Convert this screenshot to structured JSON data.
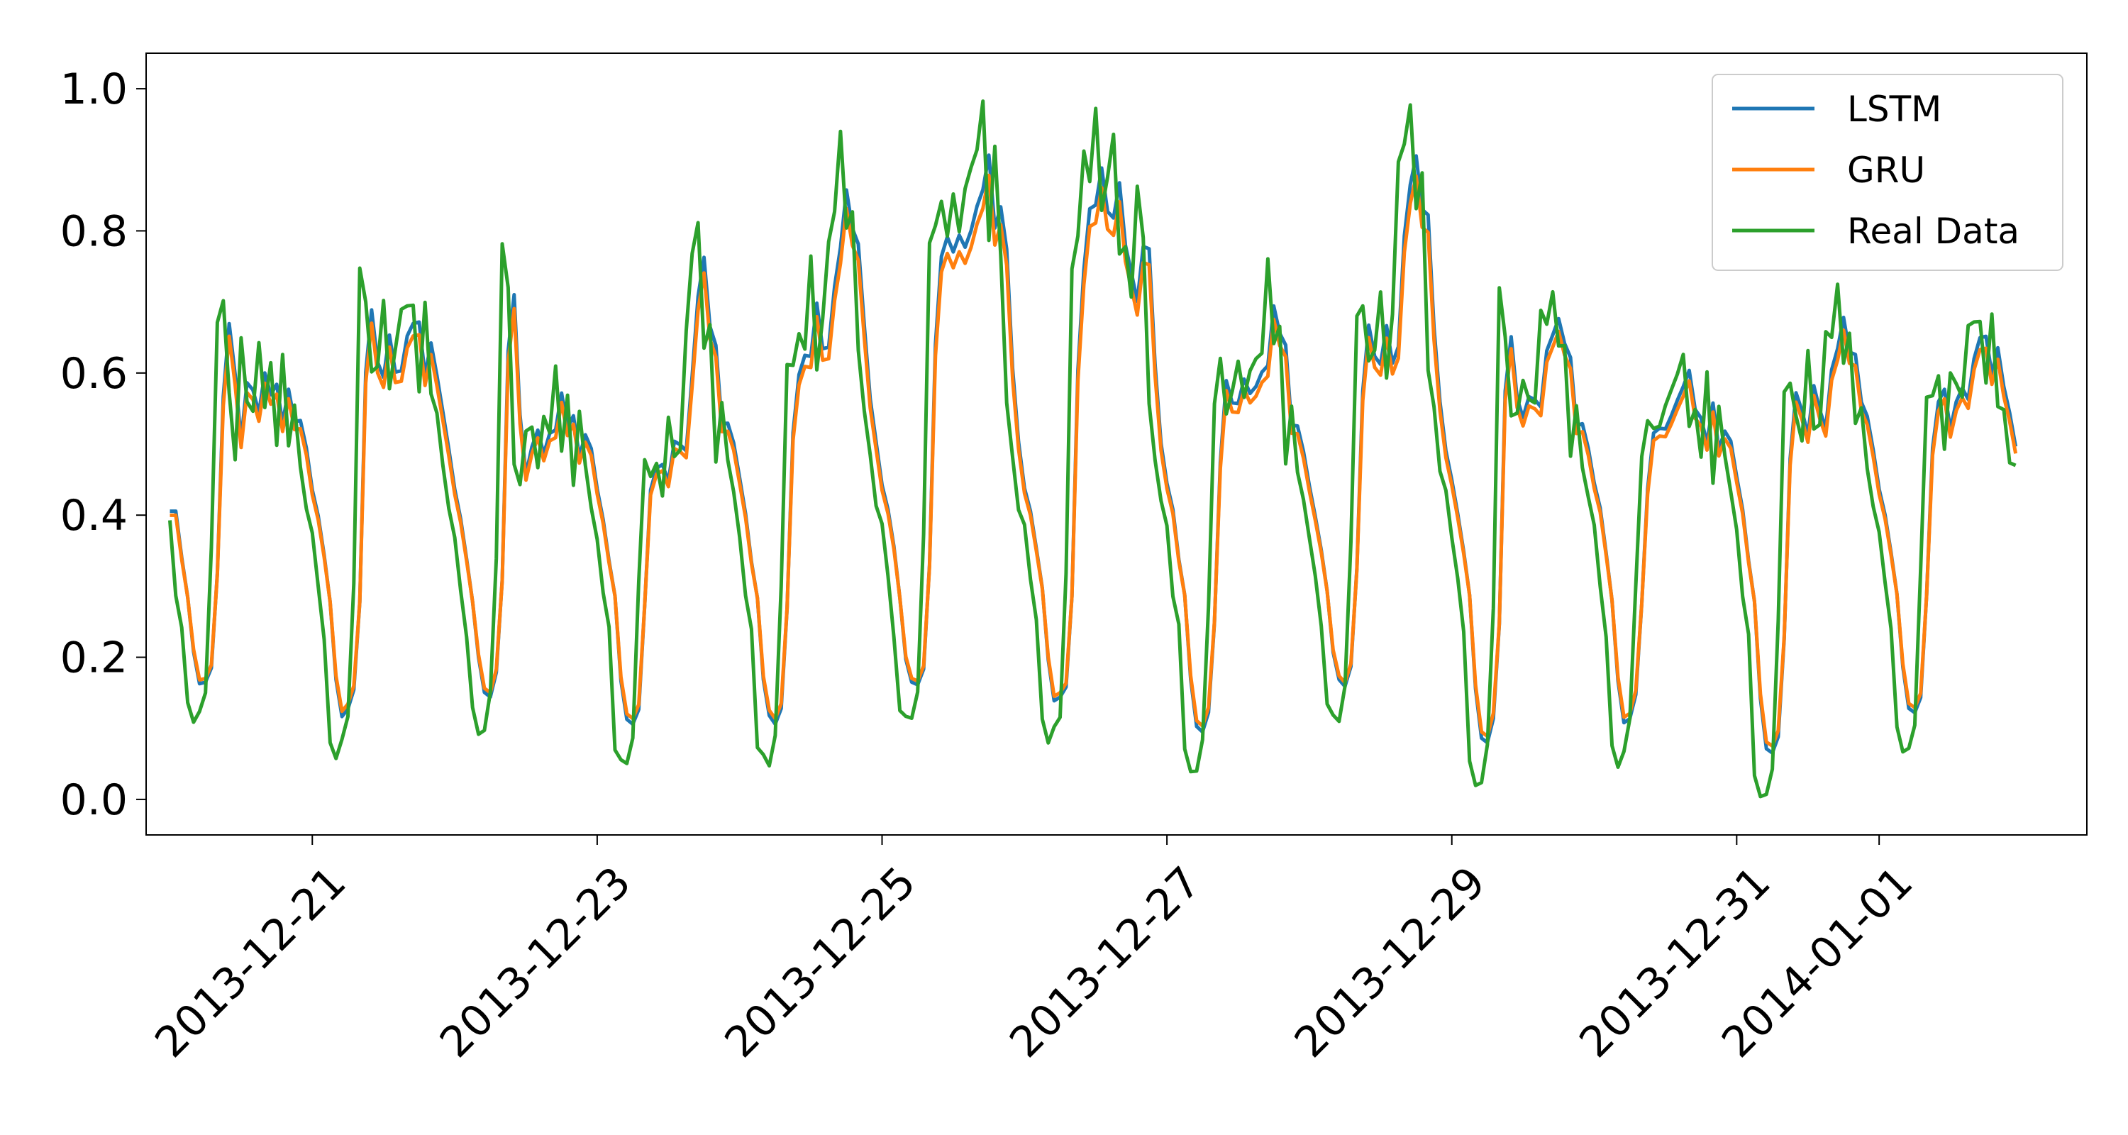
{
  "chart_data": {
    "type": "line",
    "title": "",
    "xlabel": "",
    "ylabel": "",
    "x_start": "2013-12-20 00:00",
    "x_end": "2014-01-01 23:00",
    "xlim": [
      "2013-12-19 20:00",
      "2014-01-02 11:00"
    ],
    "ylim": [
      -0.05,
      1.05
    ],
    "grid": false,
    "legend_position": "top-right",
    "x_ticks": [
      {
        "date": "2013-12-21",
        "label": "2013-12-21"
      },
      {
        "date": "2013-12-23",
        "label": "2013-12-23"
      },
      {
        "date": "2013-12-25",
        "label": "2013-12-25"
      },
      {
        "date": "2013-12-27",
        "label": "2013-12-27"
      },
      {
        "date": "2013-12-29",
        "label": "2013-12-29"
      },
      {
        "date": "2013-12-31",
        "label": "2013-12-31"
      },
      {
        "date": "2014-01-01",
        "label": "2014-01-01"
      }
    ],
    "y_ticks": [
      {
        "value": 0.0,
        "label": "0.0"
      },
      {
        "value": 0.2,
        "label": "0.2"
      },
      {
        "value": 0.4,
        "label": "0.4"
      },
      {
        "value": 0.6,
        "label": "0.6"
      },
      {
        "value": 0.8,
        "label": "0.8"
      },
      {
        "value": 1.0,
        "label": "1.0"
      }
    ],
    "daily_keypoints": [
      {
        "date": "2013-12-20",
        "low": 0.11,
        "peak": 0.67,
        "day": 0.6,
        "evening": 0.6
      },
      {
        "date": "2013-12-21",
        "low": 0.06,
        "peak": 0.75,
        "day": 0.66,
        "evening": 0.7
      },
      {
        "date": "2013-12-22",
        "low": 0.09,
        "peak": 0.79,
        "day": 0.56,
        "evening": 0.6
      },
      {
        "date": "2013-12-23",
        "low": 0.05,
        "peak": 0.48,
        "day": 0.55,
        "evening": 0.78
      },
      {
        "date": "2013-12-24",
        "low": 0.05,
        "peak": 0.6,
        "day": 0.72,
        "evening": 0.94
      },
      {
        "date": "2013-12-25",
        "low": 0.11,
        "peak": 0.79,
        "day": 0.9,
        "evening": 0.95
      },
      {
        "date": "2013-12-26",
        "low": 0.08,
        "peak": 0.74,
        "day": 0.97,
        "evening": 0.82
      },
      {
        "date": "2013-12-27",
        "low": 0.03,
        "peak": 0.56,
        "day": 0.62,
        "evening": 0.72
      },
      {
        "date": "2013-12-28",
        "low": 0.11,
        "peak": 0.69,
        "day": 0.7,
        "evening": 1.0
      },
      {
        "date": "2013-12-29",
        "low": 0.02,
        "peak": 0.72,
        "day": 0.6,
        "evening": 0.73
      },
      {
        "date": "2013-12-30",
        "low": 0.05,
        "peak": 0.48,
        "day": 0.6,
        "evening": 0.58
      },
      {
        "date": "2013-12-31",
        "low": 0.0,
        "peak": 0.58,
        "day": 0.6,
        "evening": 0.74
      },
      {
        "date": "2014-01-01",
        "low": 0.06,
        "peak": 0.58,
        "day": 0.62,
        "evening": 0.7
      }
    ],
    "end_value": 0.47,
    "series": [
      {
        "name": "LSTM",
        "color": "#1f77b4",
        "model_scale": 0.88,
        "model_offset": 0.06,
        "model_lag_hours": 1
      },
      {
        "name": "GRU",
        "color": "#ff7f0e",
        "model_scale": 0.84,
        "model_offset": 0.07,
        "model_lag_hours": 1
      },
      {
        "name": "Real Data",
        "color": "#2ca02c",
        "model_scale": 1.0,
        "model_offset": 0.0,
        "model_lag_hours": 0
      }
    ]
  }
}
